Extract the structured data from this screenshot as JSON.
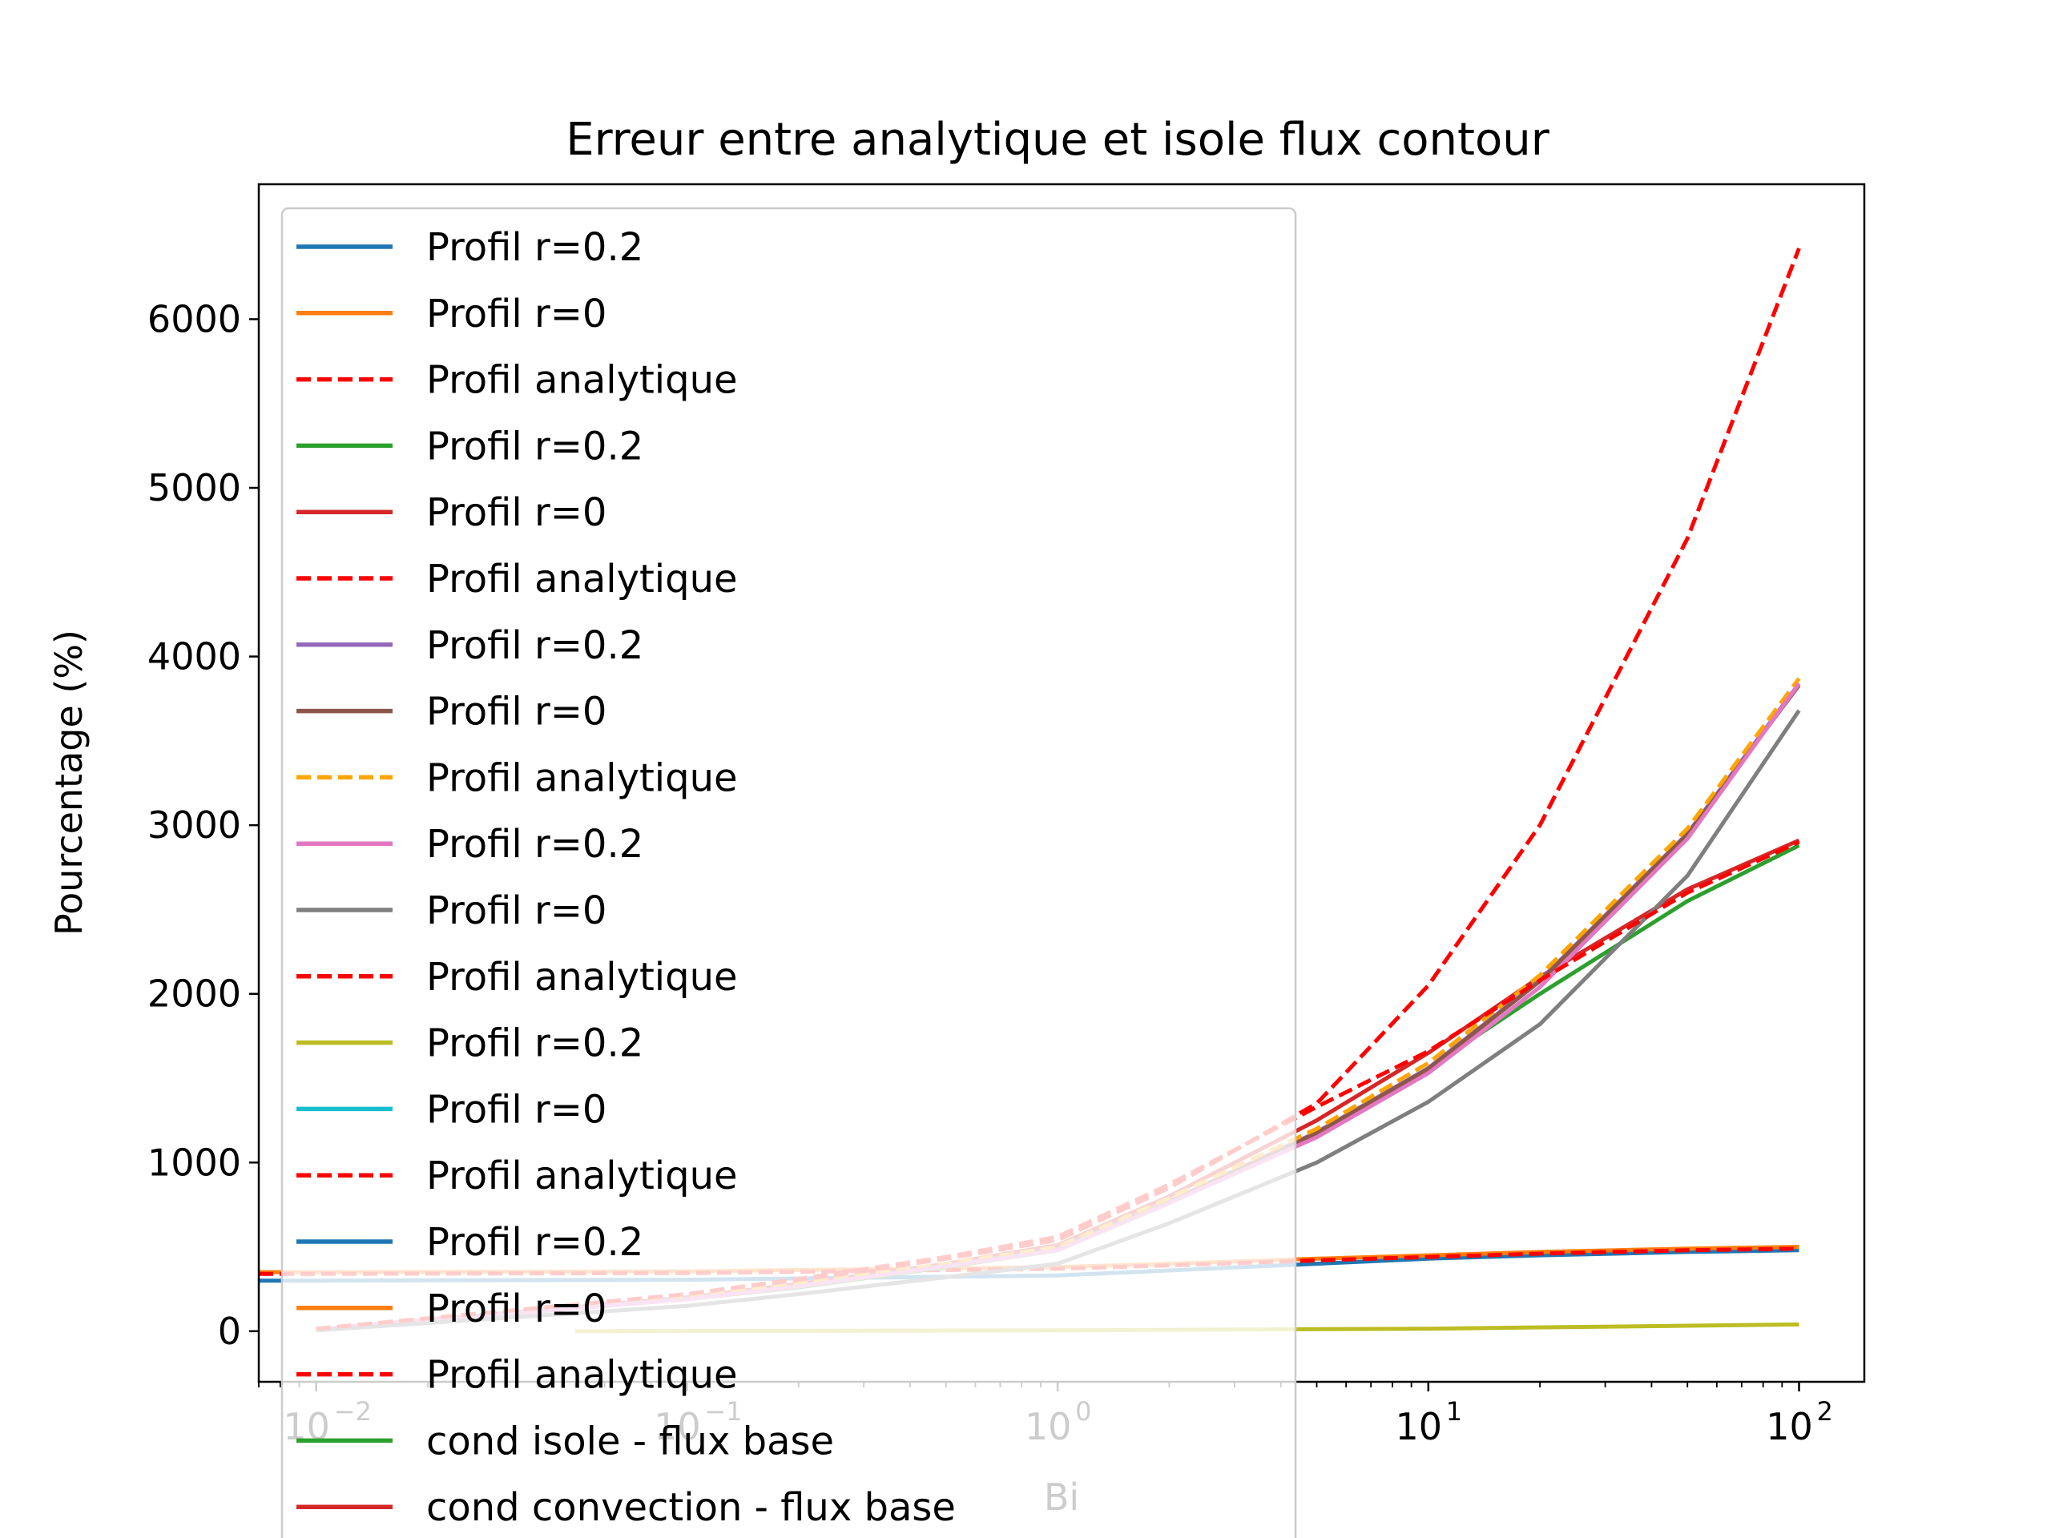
{
  "chart_data": {
    "type": "line",
    "title": "Erreur entre analytique et isole flux contour",
    "xlabel": "Bi",
    "ylabel": "Pourcentage (%)",
    "xscale": "log",
    "xlim": [
      0.007,
      150
    ],
    "ylim": [
      -300,
      6800
    ],
    "yticks": [
      0,
      1000,
      2000,
      3000,
      4000,
      5000,
      6000
    ],
    "xticks": [
      {
        "value": 0.01,
        "label": "10−2",
        "base": "10",
        "exp": "−2"
      },
      {
        "value": 0.1,
        "label": "10−1",
        "base": "10",
        "exp": "−1"
      },
      {
        "value": 1,
        "label": "100",
        "base": "10",
        "exp": "0"
      },
      {
        "value": 10,
        "label": "101",
        "base": "10",
        "exp": "1"
      },
      {
        "value": 100,
        "label": "102",
        "base": "10",
        "exp": "2"
      }
    ],
    "grid": false,
    "legend_position": "upper-left",
    "series": [
      {
        "name": "Profil r=0.2",
        "color": "#1f77b4",
        "dash": false,
        "x": [
          0.007,
          0.01,
          0.1,
          1,
          2,
          5,
          10,
          20,
          50,
          100
        ],
        "y": [
          300,
          300,
          305,
          330,
          360,
          400,
          430,
          450,
          470,
          480
        ]
      },
      {
        "name": "Profil r=0",
        "color": "#ff7f0e",
        "dash": false,
        "x": [
          0.007,
          0.01,
          0.1,
          1,
          2,
          5,
          10,
          20,
          50,
          100
        ],
        "y": [
          350,
          350,
          355,
          380,
          400,
          430,
          450,
          470,
          490,
          500
        ]
      },
      {
        "name": "Profil analytique",
        "color": "#ff0000",
        "dash": true,
        "x": [
          0.007,
          0.01,
          0.1,
          1,
          2,
          5,
          10,
          20,
          50,
          100
        ],
        "y": [
          340,
          340,
          345,
          370,
          390,
          420,
          440,
          460,
          480,
          490
        ]
      },
      {
        "name": "Profil r=0.2",
        "color": "#2ca02c",
        "dash": false,
        "x": [
          0.01,
          0.1,
          0.2,
          0.5,
          1,
          2,
          5,
          10,
          20,
          50,
          100
        ],
        "y": [
          10,
          190,
          260,
          380,
          480,
          760,
          1170,
          1560,
          2000,
          2550,
          2880
        ]
      },
      {
        "name": "Profil r=0",
        "color": "#d62728",
        "dash": false,
        "x": [
          0.01,
          0.1,
          0.2,
          0.5,
          1,
          2,
          5,
          10,
          20,
          50,
          100
        ],
        "y": [
          10,
          200,
          280,
          400,
          510,
          800,
          1250,
          1650,
          2100,
          2620,
          2910
        ]
      },
      {
        "name": "Profil analytique",
        "color": "#ff0000",
        "dash": true,
        "x": [
          0.01,
          0.1,
          0.2,
          0.5,
          1,
          2,
          5,
          10,
          20,
          50,
          100
        ],
        "y": [
          10,
          210,
          300,
          430,
          540,
          850,
          1350,
          2050,
          3000,
          4700,
          6420
        ]
      },
      {
        "name": "Profil r=0.2",
        "color": "#9467bd",
        "dash": false,
        "x": [
          0.01,
          0.1,
          0.2,
          0.5,
          1,
          2,
          5,
          10,
          20,
          50,
          100
        ],
        "y": [
          10,
          195,
          270,
          390,
          490,
          770,
          1180,
          1560,
          2080,
          2950,
          3840
        ]
      },
      {
        "name": "Profil r=0",
        "color": "#8c564b",
        "dash": false,
        "x": [
          0.01,
          0.1,
          0.2,
          0.5,
          1,
          2,
          5,
          10,
          20,
          50,
          100
        ],
        "y": [
          10,
          190,
          265,
          385,
          485,
          765,
          1175,
          1555,
          2075,
          2945,
          3830
        ]
      },
      {
        "name": "Profil analytique",
        "color": "#ffa500",
        "dash": true,
        "x": [
          0.01,
          0.1,
          0.2,
          0.5,
          1,
          2,
          5,
          10,
          20,
          50,
          100
        ],
        "y": [
          10,
          200,
          280,
          400,
          500,
          790,
          1200,
          1590,
          2110,
          2980,
          3870
        ]
      },
      {
        "name": "Profil r=0.2",
        "color": "#e377c2",
        "dash": false,
        "x": [
          0.01,
          0.1,
          0.2,
          0.5,
          1,
          2,
          5,
          10,
          20,
          50,
          100
        ],
        "y": [
          10,
          190,
          265,
          385,
          480,
          760,
          1150,
          1530,
          2040,
          2920,
          3840
        ]
      },
      {
        "name": "Profil r=0",
        "color": "#7f7f7f",
        "dash": false,
        "x": [
          0.01,
          0.1,
          0.2,
          0.5,
          1,
          2,
          5,
          10,
          20,
          50,
          100
        ],
        "y": [
          5,
          150,
          220,
          320,
          400,
          640,
          1000,
          1360,
          1820,
          2700,
          3680
        ]
      },
      {
        "name": "Profil analytique",
        "color": "#ff0000",
        "dash": true,
        "x": [
          0.01,
          0.1,
          0.2,
          0.5,
          1,
          2,
          5,
          10,
          20,
          50,
          100
        ],
        "y": [
          15,
          220,
          310,
          440,
          560,
          870,
          1330,
          1660,
          2080,
          2600,
          2900
        ]
      },
      {
        "name": "Profil r=0.2",
        "color": "#bcbd22",
        "dash": false,
        "x": [
          0.05,
          0.1,
          1,
          10,
          100
        ],
        "y": [
          0,
          1,
          5,
          15,
          40
        ]
      },
      {
        "name": "Profil r=0",
        "color": "#17becf",
        "dash": false,
        "x": [],
        "y": []
      },
      {
        "name": "Profil analytique",
        "color": "#ff0000",
        "dash": true,
        "x": [],
        "y": []
      },
      {
        "name": "Profil r=0.2",
        "color": "#1f77b4",
        "dash": false,
        "x": [],
        "y": []
      },
      {
        "name": "Profil r=0",
        "color": "#ff7f0e",
        "dash": false,
        "x": [],
        "y": []
      },
      {
        "name": "Profil analytique",
        "color": "#ff0000",
        "dash": true,
        "x": [],
        "y": []
      },
      {
        "name": "cond isole - flux base",
        "color": "#2ca02c",
        "dash": false,
        "x": [],
        "y": []
      },
      {
        "name": "cond convection - flux base",
        "color": "#d62728",
        "dash": false,
        "x": [],
        "y": []
      }
    ]
  }
}
